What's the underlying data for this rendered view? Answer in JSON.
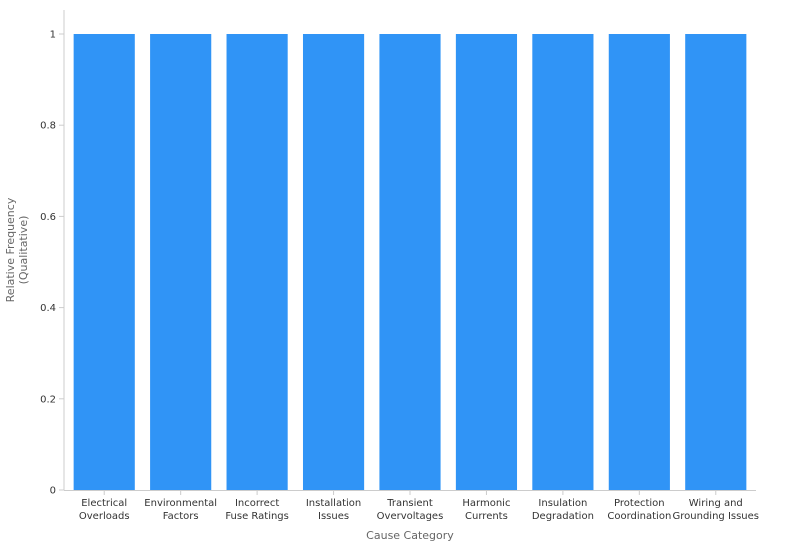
{
  "chart_data": {
    "type": "bar",
    "xlabel": "Cause Category",
    "ylabel": "Relative Frequency (Qualitative)",
    "ylabel_lines": [
      "Relative Frequency",
      "(Qualitative)"
    ],
    "ylim": [
      0,
      1
    ],
    "yticks": [
      0,
      0.2,
      0.4,
      0.6,
      0.8,
      1
    ],
    "ytick_labels": [
      "0",
      "0.2",
      "0.4",
      "0.6",
      "0.8",
      "1"
    ],
    "grid": false,
    "legend": "none",
    "bar_color": "#3094f6",
    "categories": [
      [
        "Electrical",
        "Overloads"
      ],
      [
        "Environmental",
        "Factors"
      ],
      [
        "Incorrect",
        "Fuse Ratings"
      ],
      [
        "Installation",
        "Issues"
      ],
      [
        "Transient",
        "Overvoltages"
      ],
      [
        "Harmonic",
        "Currents"
      ],
      [
        "Insulation",
        "Degradation"
      ],
      [
        "Protection",
        "Coordination"
      ],
      [
        "Wiring and",
        "Grounding Issues"
      ]
    ],
    "values": [
      1,
      1,
      1,
      1,
      1,
      1,
      1,
      1,
      1
    ]
  }
}
